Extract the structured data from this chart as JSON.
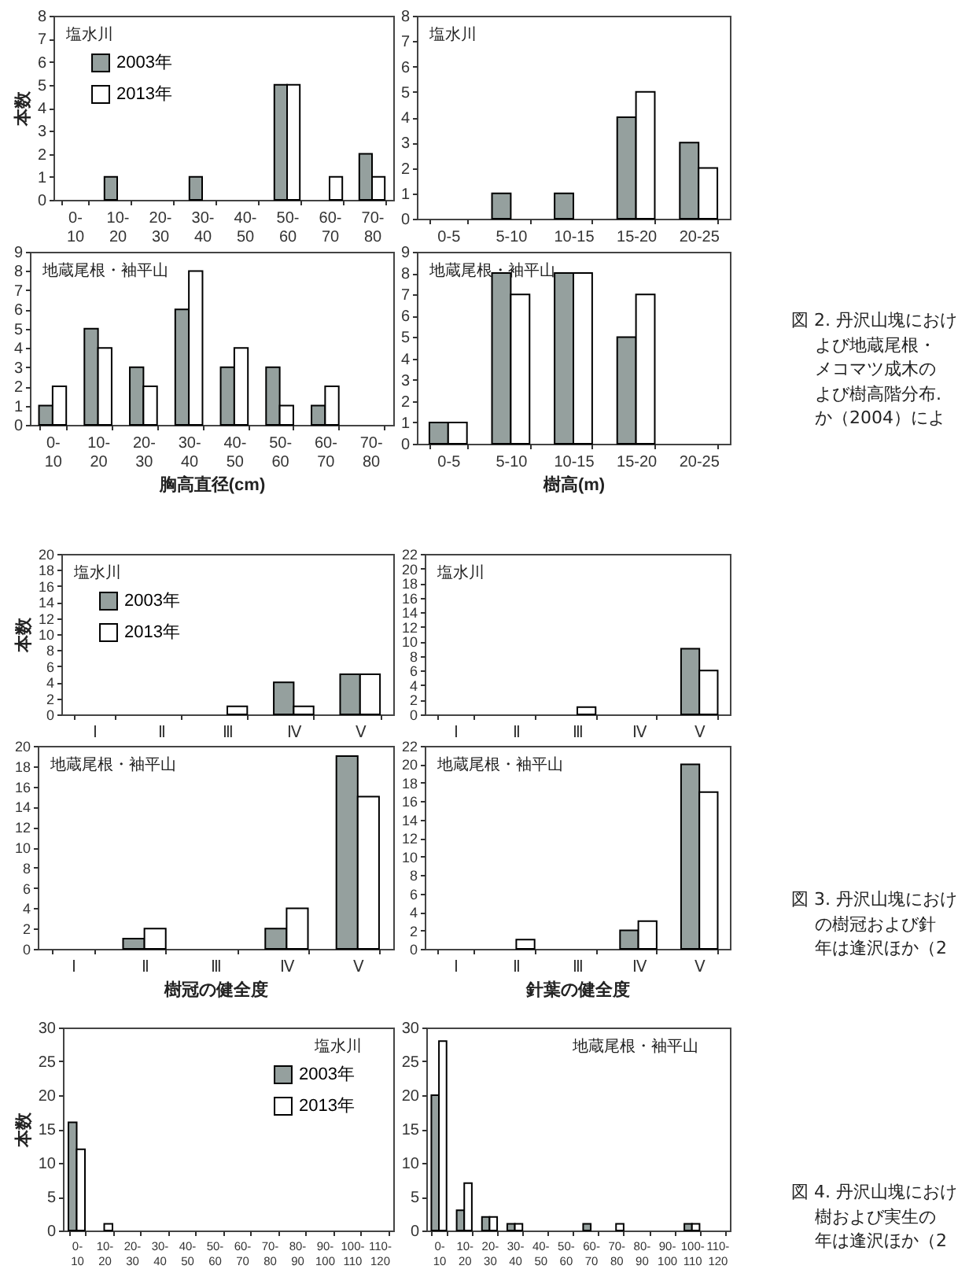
{
  "chart_data": [
    {
      "type": "bar",
      "title": "塩水川",
      "ylabel": "本数",
      "categories": [
        "0- 10",
        "10- 20",
        "20- 30",
        "30- 40",
        "40- 50",
        "50- 60",
        "60- 70",
        "70- 80"
      ],
      "legend": "top left",
      "ylim": [
        0,
        8
      ],
      "yticks": [
        0,
        1,
        2,
        3,
        4,
        5,
        6,
        7,
        8
      ],
      "series": [
        {
          "name": "2003年",
          "color": "#95a09e",
          "values": [
            0,
            1,
            0,
            1,
            0,
            5,
            0,
            2
          ]
        },
        {
          "name": "2013年",
          "color": "#ffffff",
          "values": [
            0,
            0,
            0,
            0,
            0,
            5,
            1,
            1
          ]
        }
      ]
    },
    {
      "type": "bar",
      "title": "塩水川",
      "categories": [
        "0-5",
        "5-10",
        "10-15",
        "15-20",
        "20-25"
      ],
      "ylim": [
        0,
        8
      ],
      "yticks": [
        0,
        1,
        2,
        3,
        4,
        5,
        6,
        7,
        8
      ],
      "series": [
        {
          "color": "#95a09e",
          "values": [
            0,
            1,
            1,
            4,
            3
          ]
        },
        {
          "color": "#ffffff",
          "values": [
            0,
            0,
            0,
            5,
            2
          ]
        }
      ]
    },
    {
      "type": "bar",
      "title": "地蔵尾根・袖平山",
      "xlabel": "胸高直径(cm)",
      "categories": [
        "0- 10",
        "10- 20",
        "20- 30",
        "30- 40",
        "40- 50",
        "50- 60",
        "60- 70",
        "70- 80"
      ],
      "ylim": [
        0,
        9
      ],
      "yticks": [
        0,
        1,
        2,
        3,
        4,
        5,
        6,
        7,
        8,
        9
      ],
      "series": [
        {
          "color": "#95a09e",
          "values": [
            1,
            5,
            3,
            6,
            3,
            3,
            1,
            0
          ]
        },
        {
          "color": "#ffffff",
          "values": [
            2,
            4,
            2,
            8,
            4,
            1,
            2,
            0
          ]
        }
      ]
    },
    {
      "type": "bar",
      "title": "地蔵尾根・袖平山",
      "xlabel": "樹高(m)",
      "categories": [
        "0-5",
        "5-10",
        "10-15",
        "15-20",
        "20-25"
      ],
      "ylim": [
        0,
        9
      ],
      "yticks": [
        0,
        1,
        2,
        3,
        4,
        5,
        6,
        7,
        8,
        9
      ],
      "annotations": [
        "図 2. 丹沢山塊におけ",
        "よび地蔵尾根・",
        "メコマツ成木の",
        "よび樹高階分布.",
        "か（2004）によ"
      ],
      "series": [
        {
          "color": "#95a09e",
          "values": [
            1,
            8,
            8,
            5,
            0
          ]
        },
        {
          "color": "#ffffff",
          "values": [
            1,
            7,
            8,
            7,
            0
          ]
        }
      ]
    },
    {
      "type": "bar",
      "title": "塩水川",
      "ylabel": "本数",
      "categories": [
        "Ⅰ",
        "Ⅱ",
        "Ⅲ",
        "Ⅳ",
        "Ⅴ"
      ],
      "legend": "top left",
      "ylim": [
        0,
        20
      ],
      "yticks": [
        0,
        2,
        4,
        6,
        8,
        10,
        12,
        14,
        16,
        18,
        20
      ],
      "series": [
        {
          "name": "2003年",
          "color": "#95a09e",
          "values": [
            0,
            0,
            0,
            4,
            5
          ]
        },
        {
          "name": "2013年",
          "color": "#ffffff",
          "values": [
            0,
            0,
            1,
            1,
            5
          ]
        }
      ]
    },
    {
      "type": "bar",
      "title": "塩水川",
      "categories": [
        "Ⅰ",
        "Ⅱ",
        "Ⅲ",
        "Ⅳ",
        "Ⅴ"
      ],
      "ylim": [
        0,
        22
      ],
      "yticks": [
        0,
        2,
        4,
        6,
        8,
        10,
        12,
        14,
        16,
        18,
        20,
        22
      ],
      "series": [
        {
          "color": "#95a09e",
          "values": [
            0,
            0,
            0,
            0,
            9
          ]
        },
        {
          "color": "#ffffff",
          "values": [
            0,
            0,
            1,
            0,
            6
          ]
        }
      ]
    },
    {
      "type": "bar",
      "title": "地蔵尾根・袖平山",
      "xlabel": "樹冠の健全度",
      "categories": [
        "Ⅰ",
        "Ⅱ",
        "Ⅲ",
        "Ⅳ",
        "Ⅴ"
      ],
      "ylim": [
        0,
        20
      ],
      "yticks": [
        0,
        2,
        4,
        6,
        8,
        10,
        12,
        14,
        16,
        18,
        20
      ],
      "series": [
        {
          "color": "#95a09e",
          "values": [
            0,
            1,
            0,
            2,
            19
          ]
        },
        {
          "color": "#ffffff",
          "values": [
            0,
            2,
            0,
            4,
            15
          ]
        }
      ]
    },
    {
      "type": "bar",
      "title": "地蔵尾根・袖平山",
      "xlabel": "針葉の健全度",
      "categories": [
        "Ⅰ",
        "Ⅱ",
        "Ⅲ",
        "Ⅳ",
        "Ⅴ"
      ],
      "ylim": [
        0,
        22
      ],
      "yticks": [
        0,
        2,
        4,
        6,
        8,
        10,
        12,
        14,
        16,
        18,
        20,
        22
      ],
      "annotations": [
        "図 3. 丹沢山塊におけ",
        "の樹冠および針",
        "年は逢沢ほか（2"
      ],
      "series": [
        {
          "color": "#95a09e",
          "values": [
            0,
            0,
            0,
            2,
            20
          ]
        },
        {
          "color": "#ffffff",
          "values": [
            0,
            1,
            0,
            3,
            17
          ]
        }
      ]
    },
    {
      "type": "bar",
      "title": "塩水川",
      "ylabel": "本数",
      "categories": [
        "0- 10",
        "10- 20",
        "20- 30",
        "30- 40",
        "40- 50",
        "50- 60",
        "60- 70",
        "70- 80",
        "80- 90",
        "90- 100",
        "100- 110",
        "110- 120"
      ],
      "legend": "top right",
      "ylim": [
        0,
        30
      ],
      "yticks": [
        0,
        5,
        10,
        15,
        20,
        25,
        30
      ],
      "series": [
        {
          "name": "2003年",
          "color": "#95a09e",
          "values": [
            16,
            0,
            0,
            0,
            0,
            0,
            0,
            0,
            0,
            0,
            0,
            0
          ]
        },
        {
          "name": "2013年",
          "color": "#ffffff",
          "values": [
            12,
            1,
            0,
            0,
            0,
            0,
            0,
            0,
            0,
            0,
            0,
            0
          ]
        }
      ]
    },
    {
      "type": "bar",
      "title": "地蔵尾根・袖平山",
      "categories": [
        "0- 10",
        "10- 20",
        "20- 30",
        "30- 40",
        "40- 50",
        "50- 60",
        "60- 70",
        "70- 80",
        "80- 90",
        "90- 100",
        "100- 110",
        "110- 120"
      ],
      "ylim": [
        0,
        30
      ],
      "yticks": [
        0,
        5,
        10,
        15,
        20,
        25,
        30
      ],
      "annotations": [
        "図 4. 丹沢山塊におけ",
        "樹および実生の",
        "年は逢沢ほか（2"
      ],
      "series": [
        {
          "color": "#95a09e",
          "values": [
            20,
            3,
            2,
            1,
            0,
            0,
            1,
            0,
            0,
            0,
            1,
            0
          ]
        },
        {
          "color": "#ffffff",
          "values": [
            28,
            7,
            2,
            1,
            0,
            0,
            0,
            1,
            0,
            0,
            1,
            0
          ]
        }
      ]
    }
  ]
}
